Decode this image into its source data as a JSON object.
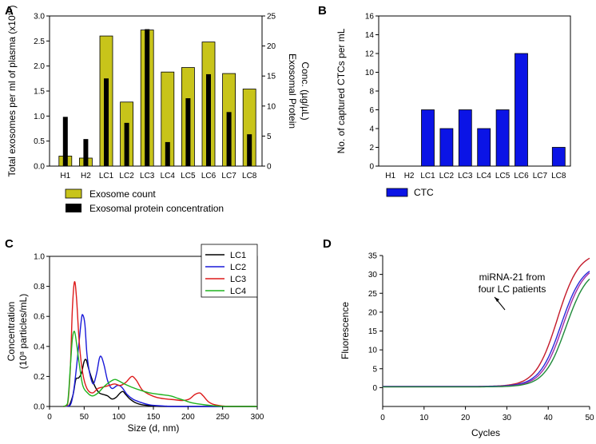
{
  "chart_data": [
    {
      "panel_label": "A",
      "type": "bar",
      "categories": [
        "H1",
        "H2",
        "LC1",
        "LC2",
        "LC3",
        "LC4",
        "LC5",
        "LC6",
        "LC7",
        "LC8"
      ],
      "series": [
        {
          "name": "Exosome count",
          "axis": "left",
          "color": "#c8c41a",
          "values": [
            0.2,
            0.16,
            2.6,
            1.28,
            2.72,
            1.88,
            1.97,
            2.48,
            1.85,
            1.54
          ]
        },
        {
          "name": "Exosomal protein concentration",
          "axis": "right",
          "color": "#000000",
          "values": [
            8.2,
            4.5,
            14.6,
            7.2,
            22.8,
            4.0,
            11.3,
            15.3,
            9.0,
            5.3
          ]
        }
      ],
      "ylabel_left": "Total exosomes per ml of plasma (x10¹⁰)",
      "ylabel_right_line1": "Exosomal Protein",
      "ylabel_right_line2": "Conc. (µg/µL)",
      "ylim_left": [
        0,
        3.0
      ],
      "yticks_left": [
        "0.0",
        "0.5",
        "1.0",
        "1.5",
        "2.0",
        "2.5",
        "3.0"
      ],
      "ylim_right": [
        0,
        25
      ],
      "yticks_right": [
        "0",
        "5",
        "10",
        "15",
        "20",
        "25"
      ],
      "legend": [
        "Exosome count",
        "Exosomal protein concentration"
      ]
    },
    {
      "panel_label": "B",
      "type": "bar",
      "categories": [
        "H1",
        "H2",
        "LC1",
        "LC2",
        "LC3",
        "LC4",
        "LC5",
        "LC6",
        "LC7",
        "LC8"
      ],
      "series": [
        {
          "name": "CTC",
          "color": "#0b14e6",
          "values": [
            0,
            0,
            6,
            4,
            6,
            4,
            6,
            12,
            0,
            2
          ]
        }
      ],
      "ylabel": "No. of captured CTCs per mL",
      "ylim": [
        0,
        16
      ],
      "yticks": [
        "0",
        "2",
        "4",
        "6",
        "8",
        "10",
        "12",
        "14",
        "16"
      ],
      "legend": [
        "CTC"
      ]
    },
    {
      "panel_label": "C",
      "type": "line",
      "xlabel": "Size (d, nm)",
      "ylabel_line1": "Concentration",
      "ylabel_line2": "(10⁸ particles/mL)",
      "xlim": [
        0,
        300
      ],
      "xticks": [
        "0",
        "50",
        "100",
        "150",
        "200",
        "250",
        "300"
      ],
      "ylim": [
        0,
        1.0
      ],
      "yticks": [
        "0.0",
        "0.2",
        "0.4",
        "0.6",
        "0.8",
        "1.0"
      ],
      "series": [
        {
          "name": "LC1",
          "color": "#000000",
          "points": [
            [
              20,
              0
            ],
            [
              28,
              0.005
            ],
            [
              34,
              0.08
            ],
            [
              38,
              0.18
            ],
            [
              42,
              0.19
            ],
            [
              46,
              0.22
            ],
            [
              50,
              0.3
            ],
            [
              53,
              0.31
            ],
            [
              56,
              0.26
            ],
            [
              60,
              0.2
            ],
            [
              66,
              0.13
            ],
            [
              72,
              0.09
            ],
            [
              78,
              0.08
            ],
            [
              84,
              0.07
            ],
            [
              90,
              0.05
            ],
            [
              96,
              0.06
            ],
            [
              102,
              0.09
            ],
            [
              106,
              0.1
            ],
            [
              110,
              0.08
            ],
            [
              116,
              0.05
            ],
            [
              124,
              0.025
            ],
            [
              135,
              0.01
            ],
            [
              150,
              0.004
            ],
            [
              170,
              0
            ],
            [
              300,
              0
            ]
          ]
        },
        {
          "name": "LC2",
          "color": "#1a1ad9",
          "points": [
            [
              22,
              0
            ],
            [
              30,
              0.01
            ],
            [
              34,
              0.08
            ],
            [
              38,
              0.22
            ],
            [
              42,
              0.4
            ],
            [
              46,
              0.58
            ],
            [
              48,
              0.61
            ],
            [
              51,
              0.55
            ],
            [
              54,
              0.35
            ],
            [
              58,
              0.22
            ],
            [
              63,
              0.15
            ],
            [
              68,
              0.22
            ],
            [
              72,
              0.32
            ],
            [
              75,
              0.33
            ],
            [
              79,
              0.27
            ],
            [
              84,
              0.17
            ],
            [
              90,
              0.12
            ],
            [
              98,
              0.14
            ],
            [
              104,
              0.13
            ],
            [
              112,
              0.08
            ],
            [
              120,
              0.05
            ],
            [
              130,
              0.03
            ],
            [
              145,
              0.01
            ],
            [
              165,
              0.003
            ],
            [
              190,
              0
            ],
            [
              300,
              0
            ]
          ]
        },
        {
          "name": "LC3",
          "color": "#dd1a1a",
          "points": [
            [
              20,
              0
            ],
            [
              26,
              0.01
            ],
            [
              30,
              0.25
            ],
            [
              33,
              0.65
            ],
            [
              36,
              0.83
            ],
            [
              39,
              0.72
            ],
            [
              43,
              0.42
            ],
            [
              48,
              0.22
            ],
            [
              54,
              0.12
            ],
            [
              62,
              0.09
            ],
            [
              70,
              0.12
            ],
            [
              78,
              0.13
            ],
            [
              86,
              0.14
            ],
            [
              94,
              0.15
            ],
            [
              102,
              0.14
            ],
            [
              110,
              0.16
            ],
            [
              116,
              0.19
            ],
            [
              120,
              0.2
            ],
            [
              126,
              0.17
            ],
            [
              134,
              0.11
            ],
            [
              144,
              0.08
            ],
            [
              155,
              0.06
            ],
            [
              168,
              0.05
            ],
            [
              180,
              0.045
            ],
            [
              192,
              0.04
            ],
            [
              202,
              0.05
            ],
            [
              210,
              0.08
            ],
            [
              217,
              0.09
            ],
            [
              222,
              0.07
            ],
            [
              230,
              0.03
            ],
            [
              240,
              0.01
            ],
            [
              260,
              0
            ],
            [
              300,
              0
            ]
          ]
        },
        {
          "name": "LC4",
          "color": "#1fb31f",
          "points": [
            [
              20,
              0
            ],
            [
              26,
              0.02
            ],
            [
              30,
              0.26
            ],
            [
              33,
              0.45
            ],
            [
              36,
              0.5
            ],
            [
              39,
              0.42
            ],
            [
              43,
              0.28
            ],
            [
              48,
              0.14
            ],
            [
              55,
              0.09
            ],
            [
              62,
              0.07
            ],
            [
              70,
              0.09
            ],
            [
              78,
              0.13
            ],
            [
              86,
              0.16
            ],
            [
              94,
              0.18
            ],
            [
              100,
              0.17
            ],
            [
              108,
              0.15
            ],
            [
              118,
              0.13
            ],
            [
              130,
              0.11
            ],
            [
              145,
              0.09
            ],
            [
              160,
              0.08
            ],
            [
              175,
              0.07
            ],
            [
              185,
              0.055
            ],
            [
              195,
              0.04
            ],
            [
              205,
              0.025
            ],
            [
              218,
              0.015
            ],
            [
              235,
              0.006
            ],
            [
              255,
              0
            ],
            [
              300,
              0
            ]
          ]
        }
      ]
    },
    {
      "panel_label": "D",
      "type": "line",
      "xlabel": "Cycles",
      "ylabel": "Fluorescence",
      "xlim": [
        0,
        50
      ],
      "xticks": [
        "0",
        "10",
        "20",
        "30",
        "40",
        "50"
      ],
      "ylim": [
        -5,
        35
      ],
      "yticks": [
        "0",
        "5",
        "10",
        "15",
        "20",
        "25",
        "30",
        "35"
      ],
      "annotation_line1": "miRNA-21 from",
      "annotation_line2": "four LC patients",
      "series": [
        {
          "name": "curve-red",
          "color": "#c41a2a",
          "midpoint": 42.2,
          "top": 36,
          "base": 0.3
        },
        {
          "name": "curve-blue",
          "color": "#2a2ad9",
          "midpoint": 43.1,
          "top": 33,
          "base": 0.3
        },
        {
          "name": "curve-purple",
          "color": "#a02aa8",
          "midpoint": 43.6,
          "top": 33,
          "base": 0.2
        },
        {
          "name": "curve-green",
          "color": "#1f8a3a",
          "midpoint": 44.3,
          "top": 32,
          "base": 0.2
        }
      ]
    }
  ]
}
